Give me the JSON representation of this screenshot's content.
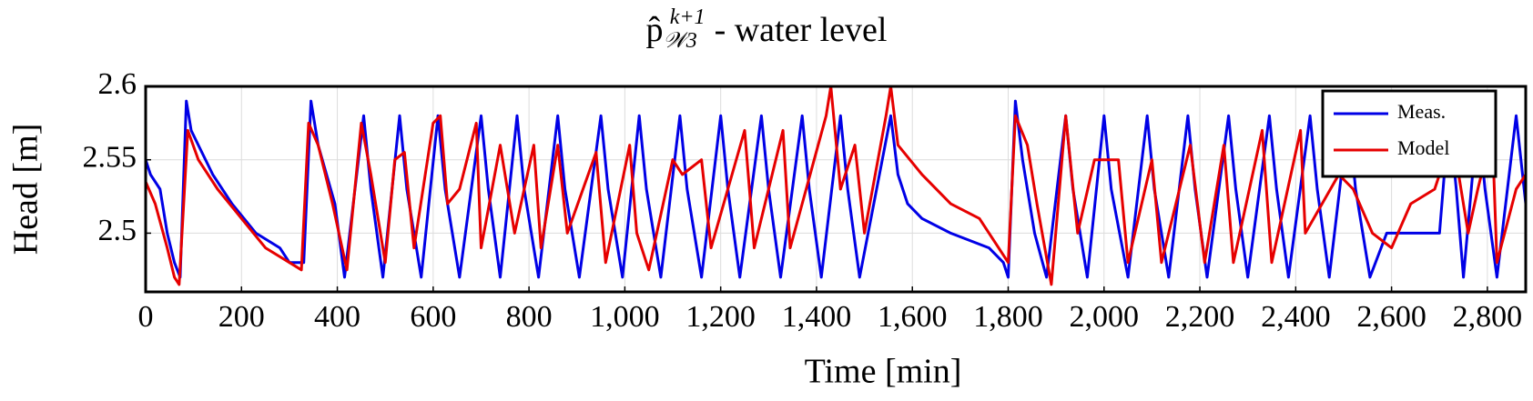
{
  "chart_data": {
    "type": "line",
    "title_symbol": "p̂",
    "title_subscript": "𝒲3",
    "title_superscript": "k+1",
    "title_text": "- water level",
    "x_label": "Time [min]",
    "y_label": "Head [m]",
    "xlim": [
      0,
      2880
    ],
    "ylim": [
      2.46,
      2.6
    ],
    "xticks": [
      0,
      200,
      400,
      600,
      800,
      {
        "value": 1000,
        "label": "1,000"
      },
      {
        "value": 1200,
        "label": "1,200"
      },
      {
        "value": 1400,
        "label": "1,400"
      },
      {
        "value": 1600,
        "label": "1,600"
      },
      {
        "value": 1800,
        "label": "1,800"
      },
      {
        "value": 2000,
        "label": "2,000"
      },
      {
        "value": 2200,
        "label": "2,200"
      },
      {
        "value": 2400,
        "label": "2,400"
      },
      {
        "value": 2600,
        "label": "2,600"
      },
      {
        "value": 2800,
        "label": "2,800"
      }
    ],
    "yticks": [
      2.5,
      2.55,
      2.6
    ],
    "grid": true,
    "legend_position": "upper-right",
    "series": [
      {
        "name": "Meas.",
        "color": "#0000e6",
        "x": [
          0,
          10,
          30,
          45,
          60,
          72,
          85,
          95,
          110,
          140,
          180,
          230,
          280,
          300,
          330,
          345,
          360,
          395,
          415,
          455,
          470,
          495,
          530,
          545,
          575,
          610,
          625,
          655,
          700,
          715,
          740,
          775,
          790,
          820,
          860,
          875,
          905,
          950,
          965,
          995,
          1030,
          1045,
          1075,
          1115,
          1130,
          1160,
          1200,
          1215,
          1240,
          1285,
          1300,
          1325,
          1370,
          1385,
          1410,
          1450,
          1465,
          1490,
          1555,
          1570,
          1590,
          1620,
          1680,
          1760,
          1790,
          1800,
          1815,
          1830,
          1855,
          1880,
          1920,
          1935,
          1965,
          2000,
          2015,
          2050,
          2090,
          2105,
          2135,
          2175,
          2190,
          2215,
          2260,
          2275,
          2300,
          2345,
          2360,
          2385,
          2430,
          2445,
          2470,
          2510,
          2525,
          2555,
          2590,
          2700,
          2720,
          2735,
          2750,
          2780,
          2795,
          2820,
          2860,
          2880
        ],
        "values": [
          2.55,
          2.54,
          2.53,
          2.5,
          2.48,
          2.47,
          2.59,
          2.57,
          2.56,
          2.54,
          2.52,
          2.5,
          2.49,
          2.48,
          2.48,
          2.59,
          2.56,
          2.52,
          2.47,
          2.58,
          2.53,
          2.47,
          2.58,
          2.53,
          2.47,
          2.58,
          2.53,
          2.47,
          2.58,
          2.53,
          2.47,
          2.58,
          2.53,
          2.47,
          2.58,
          2.53,
          2.47,
          2.58,
          2.53,
          2.47,
          2.58,
          2.53,
          2.47,
          2.58,
          2.53,
          2.47,
          2.58,
          2.53,
          2.47,
          2.58,
          2.53,
          2.47,
          2.58,
          2.53,
          2.47,
          2.58,
          2.53,
          2.47,
          2.58,
          2.54,
          2.52,
          2.51,
          2.5,
          2.49,
          2.48,
          2.47,
          2.59,
          2.55,
          2.5,
          2.47,
          2.58,
          2.53,
          2.47,
          2.58,
          2.53,
          2.47,
          2.58,
          2.53,
          2.47,
          2.58,
          2.53,
          2.47,
          2.58,
          2.53,
          2.47,
          2.58,
          2.53,
          2.47,
          2.58,
          2.53,
          2.47,
          2.58,
          2.53,
          2.47,
          2.5,
          2.5,
          2.58,
          2.53,
          2.47,
          2.58,
          2.53,
          2.47,
          2.58,
          2.52
        ]
      },
      {
        "name": "Model",
        "color": "#e60000",
        "x": [
          0,
          20,
          45,
          60,
          70,
          88,
          110,
          150,
          200,
          250,
          300,
          325,
          340,
          360,
          390,
          420,
          450,
          470,
          500,
          520,
          540,
          560,
          600,
          615,
          630,
          655,
          690,
          700,
          740,
          770,
          810,
          825,
          860,
          880,
          940,
          960,
          1010,
          1025,
          1050,
          1100,
          1120,
          1160,
          1180,
          1250,
          1270,
          1330,
          1345,
          1420,
          1430,
          1450,
          1480,
          1500,
          1545,
          1555,
          1570,
          1620,
          1680,
          1740,
          1780,
          1800,
          1815,
          1840,
          1860,
          1890,
          1920,
          1945,
          1980,
          2030,
          2050,
          2100,
          2120,
          2180,
          2210,
          2250,
          2270,
          2330,
          2350,
          2410,
          2420,
          2490,
          2520,
          2560,
          2600,
          2640,
          2690,
          2700,
          2720,
          2760,
          2780,
          2810,
          2820,
          2860,
          2880
        ],
        "values": [
          2.535,
          2.52,
          2.49,
          2.47,
          2.465,
          2.57,
          2.55,
          2.53,
          2.51,
          2.49,
          2.48,
          2.475,
          2.575,
          2.56,
          2.52,
          2.475,
          2.575,
          2.54,
          2.48,
          2.55,
          2.555,
          2.49,
          2.575,
          2.58,
          2.52,
          2.53,
          2.575,
          2.49,
          2.56,
          2.5,
          2.56,
          2.49,
          2.56,
          2.5,
          2.555,
          2.48,
          2.56,
          2.5,
          2.475,
          2.55,
          2.54,
          2.55,
          2.49,
          2.57,
          2.49,
          2.57,
          2.49,
          2.58,
          2.6,
          2.53,
          2.56,
          2.5,
          2.58,
          2.6,
          2.56,
          2.54,
          2.52,
          2.51,
          2.49,
          2.48,
          2.58,
          2.56,
          2.52,
          2.465,
          2.58,
          2.5,
          2.55,
          2.55,
          2.48,
          2.55,
          2.48,
          2.56,
          2.48,
          2.56,
          2.48,
          2.57,
          2.48,
          2.57,
          2.5,
          2.54,
          2.53,
          2.5,
          2.49,
          2.52,
          2.53,
          2.54,
          2.58,
          2.5,
          2.53,
          2.57,
          2.48,
          2.53,
          2.54
        ]
      }
    ]
  }
}
